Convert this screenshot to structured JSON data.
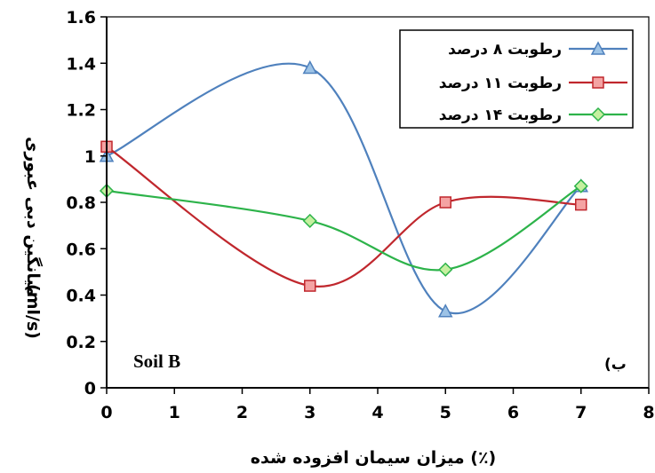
{
  "chart_data": {
    "type": "line",
    "xlabel": "میزان سیمان افزوده شده (٪)",
    "ylabel": "میانگین دبی عبوری",
    "ylabel_unit": "(ml/s)",
    "xlim": [
      0,
      8
    ],
    "ylim": [
      0,
      1.6
    ],
    "x_ticks": [
      "0",
      "1",
      "2",
      "3",
      "4",
      "5",
      "6",
      "7",
      "8"
    ],
    "y_ticks": [
      "0",
      "0.2",
      "0.4",
      "0.6",
      "0.8",
      "1",
      "1.2",
      "1.4",
      "1.6"
    ],
    "grid": false,
    "legend_position": "top-right",
    "annotations": [
      "Soil B",
      "(ب"
    ],
    "series": [
      {
        "name": "رطوبت ۸ درصد",
        "color": "#4f81bd",
        "marker": "triangle",
        "x": [
          0,
          3,
          5,
          7
        ],
        "y": [
          1.0,
          1.38,
          0.33,
          0.87
        ]
      },
      {
        "name": "رطوبت ۱۱ درصد",
        "color": "#c0272d",
        "marker": "square",
        "x": [
          0,
          3,
          5,
          7
        ],
        "y": [
          1.04,
          0.44,
          0.8,
          0.79
        ]
      },
      {
        "name": "رطوبت ۱۴ درصد",
        "color": "#2db34a",
        "marker": "diamond",
        "x": [
          0,
          3,
          5,
          7
        ],
        "y": [
          0.85,
          0.72,
          0.51,
          0.87
        ]
      }
    ]
  }
}
